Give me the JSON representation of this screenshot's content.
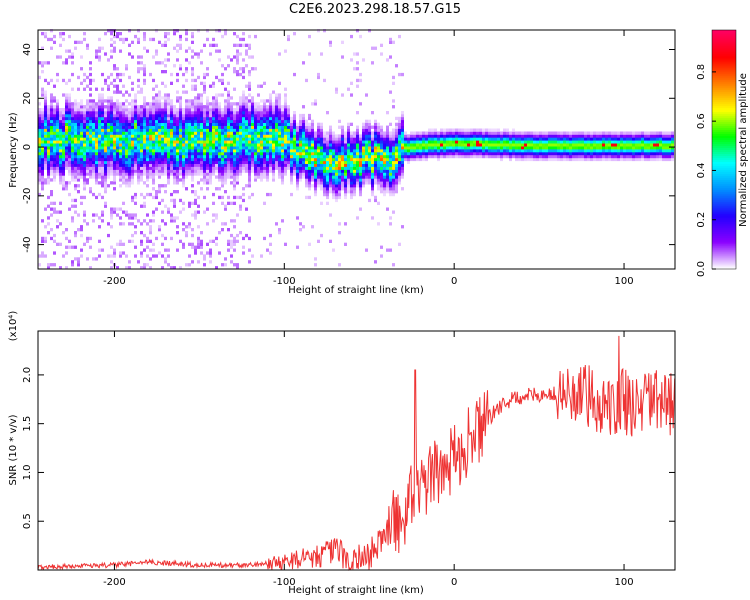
{
  "title": "C2E6.2023.298.18.57.G15",
  "chart_data": [
    {
      "type": "heatmap",
      "xlabel": "Height of straight line (km)",
      "ylabel": "Frequency (Hz)",
      "xlim": [
        -245,
        130
      ],
      "ylim": [
        -50,
        48
      ],
      "xticks": [
        -200,
        -100,
        0,
        100
      ],
      "xtick_labels": [
        "-200",
        "-100",
        "0",
        "100"
      ],
      "yticks": [
        -40,
        -20,
        0,
        20,
        40
      ],
      "ytick_labels": [
        "-40",
        "-20",
        "0",
        "20",
        "40"
      ],
      "colorbar": {
        "label": "Normalized spectral amplitude",
        "range": [
          0,
          0.97
        ],
        "ticks": [
          0.0,
          0.2,
          0.4,
          0.6,
          0.8
        ],
        "tick_labels": [
          "0.0",
          "0.2",
          "0.4",
          "0.6",
          "0.8"
        ],
        "colors": [
          "#ffffff",
          "#8a00ff",
          "#2200ff",
          "#0090ff",
          "#00ffff",
          "#00ff00",
          "#ffff00",
          "#ff8000",
          "#ff0000",
          "#ff0060"
        ]
      },
      "ridge_center_hz": {
        "x": [
          -245,
          -200,
          -150,
          -120,
          -100,
          -90,
          -80,
          -70,
          -60,
          -50,
          -40,
          -30,
          -20,
          0,
          50,
          130
        ],
        "y": [
          3,
          2,
          2,
          3,
          2,
          -3,
          -6,
          -8,
          -6,
          -5,
          -6,
          -1,
          0,
          1,
          0,
          0
        ]
      }
    },
    {
      "type": "line",
      "xlabel": "Height of straight line (km)",
      "ylabel": "SNR (10 * v/v)",
      "y_multiplier": "(x10⁴)",
      "xlim": [
        -245,
        130
      ],
      "ylim": [
        0,
        2.45
      ],
      "xticks": [
        -200,
        -100,
        0,
        100
      ],
      "xtick_labels": [
        "-200",
        "-100",
        "0",
        "100"
      ],
      "yticks": [
        0.5,
        1.0,
        1.5,
        2.0
      ],
      "ytick_labels": [
        "0.5",
        "1.0",
        "1.5",
        "2.0"
      ],
      "series": [
        {
          "color": "#ee3333",
          "x": [
            -245,
            -220,
            -200,
            -180,
            -150,
            -120,
            -100,
            -90,
            -80,
            -70,
            -60,
            -50,
            -45,
            -40,
            -35,
            -30,
            -25,
            -20,
            -10,
            0,
            10,
            20,
            30,
            40,
            50,
            60,
            70,
            80,
            90,
            100,
            110,
            120,
            130
          ],
          "y": [
            0.03,
            0.04,
            0.05,
            0.08,
            0.05,
            0.05,
            0.08,
            0.12,
            0.15,
            0.2,
            0.1,
            0.15,
            0.25,
            0.4,
            0.5,
            0.55,
            0.75,
            0.85,
            1.0,
            1.15,
            1.35,
            1.55,
            1.72,
            1.78,
            1.8,
            1.8,
            1.78,
            1.75,
            1.7,
            1.72,
            1.72,
            1.7,
            1.7
          ]
        }
      ]
    }
  ]
}
